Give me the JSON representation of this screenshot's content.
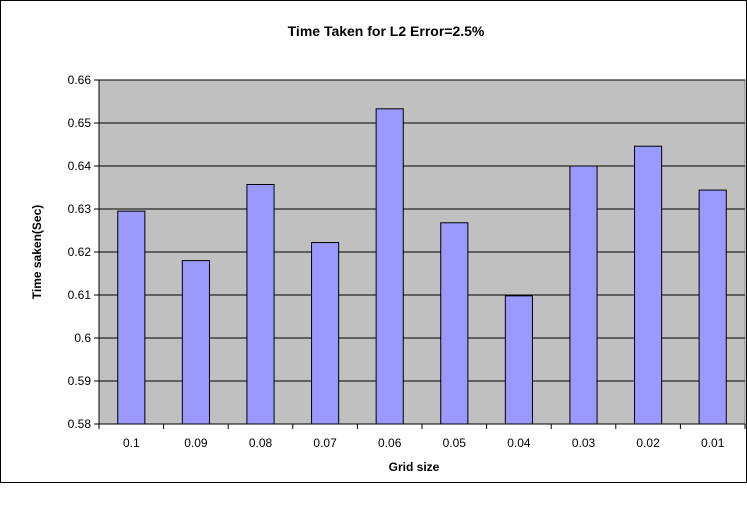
{
  "chart_data": {
    "type": "bar",
    "title": "Time Taken for L2 Error=2.5%",
    "xlabel": "Grid size",
    "ylabel": "Time saken(Sec)",
    "categories": [
      "0.1",
      "0.09",
      "0.08",
      "0.07",
      "0.06",
      "0.05",
      "0.04",
      "0.03",
      "0.02",
      "0.01"
    ],
    "values": [
      0.6295,
      0.618,
      0.6357,
      0.6222,
      0.6533,
      0.6268,
      0.6098,
      0.64,
      0.6446,
      0.6344
    ],
    "ylim": [
      0.58,
      0.66
    ],
    "yticks": [
      "0.58",
      "0.59",
      "0.6",
      "0.61",
      "0.62",
      "0.63",
      "0.64",
      "0.65",
      "0.66"
    ],
    "grid": true,
    "legend": "none",
    "colors": {
      "plot_background": "#C0C0C0",
      "bar_fill": "#9999FF",
      "bar_stroke": "#000000",
      "grid": "#000000"
    }
  }
}
